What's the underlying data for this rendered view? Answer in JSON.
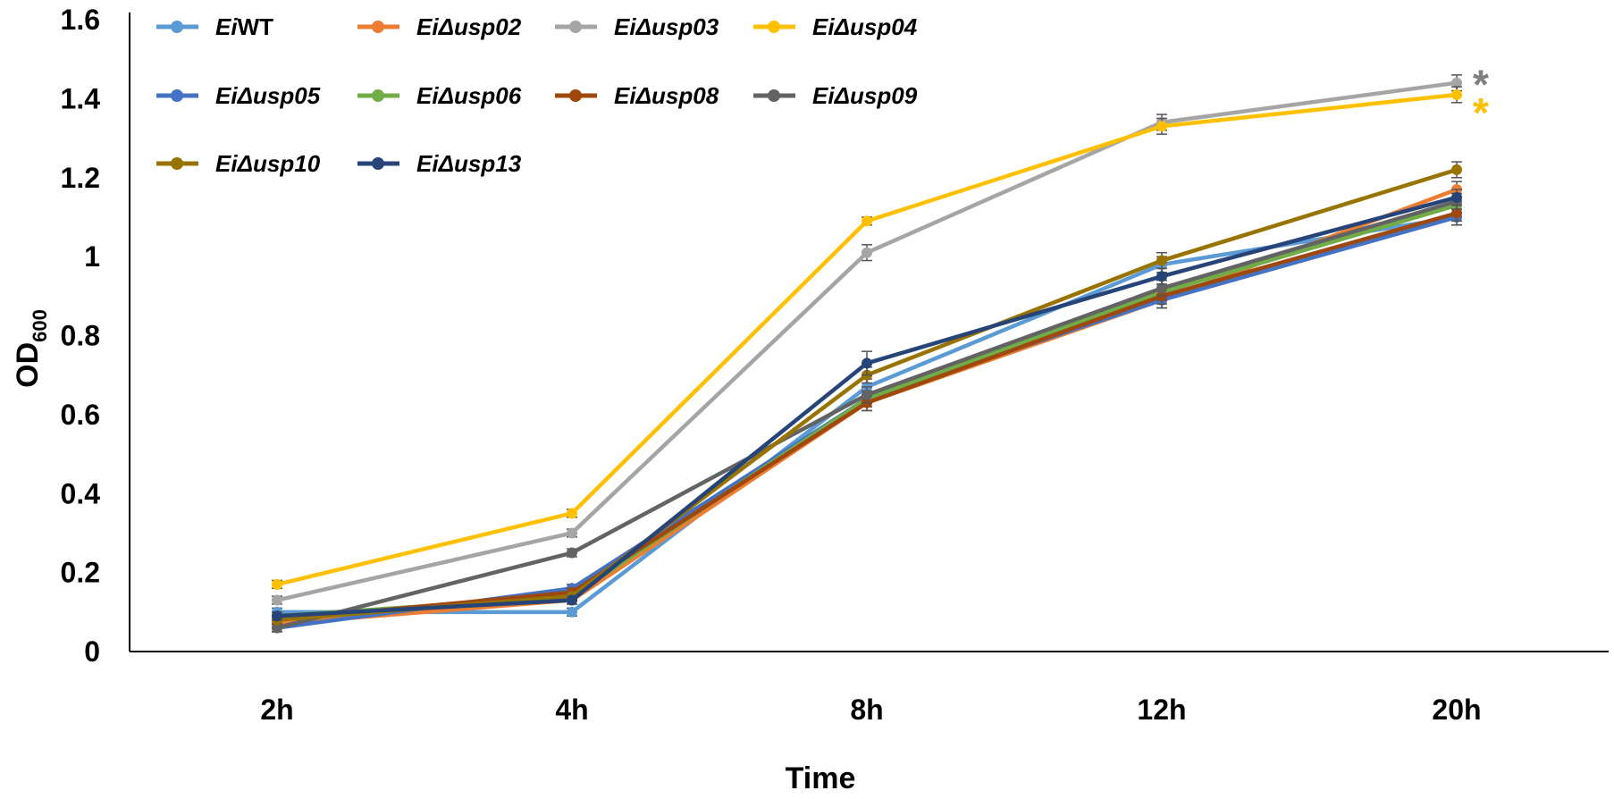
{
  "chart_data": {
    "type": "line",
    "title": "",
    "xlabel": "Time",
    "ylabel_main": "OD",
    "ylabel_sub": "600",
    "categories": [
      "2h",
      "4h",
      "8h",
      "12h",
      "20h"
    ],
    "ylim": [
      0,
      1.6
    ],
    "yticks": [
      "0",
      "0.2",
      "0.4",
      "0.6",
      "0.8",
      "1",
      "1.2",
      "1.4",
      "1.6"
    ],
    "grid": false,
    "error_bars": true,
    "legend_position": "top-left",
    "series": [
      {
        "prefix": "Ei",
        "name": "WT",
        "color": "#5B9BD5",
        "values": [
          0.1,
          0.1,
          0.67,
          0.98,
          1.1
        ],
        "errors": [
          0.01,
          0.01,
          0.02,
          0.02,
          0.02
        ]
      },
      {
        "prefix": "Ei",
        "name": "Δusp02",
        "color": "#ED7D31",
        "values": [
          0.07,
          0.13,
          0.63,
          0.89,
          1.17
        ],
        "errors": [
          0.01,
          0.01,
          0.02,
          0.02,
          0.02
        ]
      },
      {
        "prefix": "Ei",
        "name": "Δusp03",
        "color": "#A5A5A5",
        "values": [
          0.13,
          0.3,
          1.01,
          1.34,
          1.44
        ],
        "errors": [
          0.01,
          0.01,
          0.02,
          0.02,
          0.02
        ]
      },
      {
        "prefix": "Ei",
        "name": "Δusp04",
        "color": "#FFC000",
        "values": [
          0.17,
          0.35,
          1.09,
          1.33,
          1.41
        ],
        "errors": [
          0.01,
          0.01,
          0.01,
          0.02,
          0.02
        ]
      },
      {
        "prefix": "Ei",
        "name": "Δusp05",
        "color": "#4472C4",
        "values": [
          0.06,
          0.16,
          0.64,
          0.89,
          1.1
        ],
        "errors": [
          0.01,
          0.01,
          0.02,
          0.02,
          0.02
        ]
      },
      {
        "prefix": "Ei",
        "name": "Δusp06",
        "color": "#70AD47",
        "values": [
          0.09,
          0.14,
          0.64,
          0.91,
          1.13
        ],
        "errors": [
          0.01,
          0.01,
          0.02,
          0.02,
          0.02
        ]
      },
      {
        "prefix": "Ei",
        "name": "Δusp08",
        "color": "#9E480E",
        "values": [
          0.08,
          0.15,
          0.63,
          0.9,
          1.11
        ],
        "errors": [
          0.01,
          0.01,
          0.02,
          0.02,
          0.02
        ]
      },
      {
        "prefix": "Ei",
        "name": "Δusp09",
        "color": "#636363",
        "values": [
          0.06,
          0.25,
          0.65,
          0.92,
          1.14
        ],
        "errors": [
          0.01,
          0.01,
          0.02,
          0.02,
          0.02
        ]
      },
      {
        "prefix": "Ei",
        "name": "Δusp10",
        "color": "#997300",
        "values": [
          0.08,
          0.14,
          0.7,
          0.99,
          1.22
        ],
        "errors": [
          0.01,
          0.01,
          0.02,
          0.02,
          0.02
        ]
      },
      {
        "prefix": "Ei",
        "name": "Δusp13",
        "color": "#264478",
        "values": [
          0.09,
          0.13,
          0.73,
          0.95,
          1.15
        ],
        "errors": [
          0.01,
          0.01,
          0.03,
          0.02,
          0.02
        ]
      }
    ],
    "annotations": [
      {
        "text": "*",
        "series": "Δusp03",
        "category": "20h",
        "color": "#808080"
      },
      {
        "text": "*",
        "series": "Δusp04",
        "category": "20h",
        "color": "#FFC000"
      }
    ]
  }
}
